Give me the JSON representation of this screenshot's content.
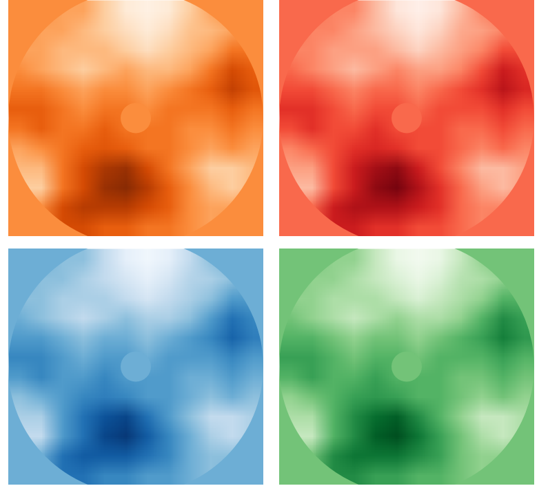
{
  "chart_data": [
    {
      "type": "heatmap",
      "color": "Oranges",
      "color_range": [
        -3,
        3
      ],
      "tick_labels": false,
      "cells": [
        [
          0,
          0,
          -0.5,
          -0.5,
          -1.5,
          -2.5,
          -2.8,
          -2.5,
          -1.5,
          -0.5,
          0,
          0
        ],
        [
          0,
          -0.5,
          -0.5,
          -1,
          -1.5,
          -2,
          -2.5,
          -2,
          -1.2,
          -1,
          -0.5,
          0
        ],
        [
          -0.5,
          -0.5,
          -1,
          -1,
          -1,
          -1.5,
          -2,
          -1.5,
          -1,
          -0.5,
          0.5,
          0.5
        ],
        [
          0,
          -0.5,
          -1,
          -1.5,
          -1,
          -0.5,
          -1,
          -1,
          -0.5,
          0.5,
          1.5,
          1
        ],
        [
          0.5,
          0.5,
          0,
          -0.5,
          0,
          0,
          -0.5,
          0,
          0.5,
          1,
          1.8,
          1.2
        ],
        [
          1,
          1,
          0.5,
          0,
          0.5,
          0.5,
          0,
          0.5,
          0.5,
          0.5,
          1,
          0.5
        ],
        [
          0.5,
          1,
          0.5,
          0.5,
          1,
          0.5,
          0.5,
          0.5,
          0,
          0,
          0.5,
          0
        ],
        [
          -0.5,
          0,
          0.5,
          1,
          1.2,
          1,
          0.5,
          0.5,
          0,
          -0.5,
          0,
          -0.5
        ],
        [
          -1,
          -1,
          0.5,
          1.5,
          2.2,
          2.5,
          1.5,
          0.5,
          -0.5,
          -1.5,
          -1.5,
          -1
        ],
        [
          -1.5,
          -1.5,
          0.5,
          1.5,
          2.5,
          2.8,
          2,
          1,
          0,
          -1,
          -1.5,
          -1
        ],
        [
          -1,
          0,
          1.5,
          2,
          2,
          2,
          1.5,
          1,
          0,
          -0.5,
          -0.5,
          -0.5
        ],
        [
          0,
          0.5,
          1.5,
          1.5,
          1,
          1,
          0.5,
          0.5,
          0,
          -0.5,
          0,
          0
        ]
      ]
    },
    {
      "type": "heatmap",
      "color": "Reds",
      "color_range": [
        -3,
        3
      ],
      "tick_labels": false,
      "cells": [
        [
          0,
          0,
          -0.5,
          -0.5,
          -1.5,
          -2.5,
          -2.8,
          -2.5,
          -1.5,
          -0.5,
          0,
          0
        ],
        [
          0,
          -0.5,
          -0.5,
          -1,
          -1.5,
          -2,
          -2.5,
          -2,
          -1.2,
          -1,
          -0.5,
          0
        ],
        [
          -0.5,
          -0.5,
          -1,
          -1,
          -1,
          -1.5,
          -2,
          -1.5,
          -1,
          -0.5,
          0.5,
          0.5
        ],
        [
          0,
          -0.5,
          -1,
          -1.5,
          -1,
          -0.5,
          -1,
          -1,
          -0.5,
          0.5,
          1.5,
          1
        ],
        [
          0.5,
          0.5,
          0,
          -0.5,
          0,
          0,
          -0.5,
          0,
          0.5,
          1,
          1.8,
          1.2
        ],
        [
          1,
          1,
          0.5,
          0,
          0.5,
          0.5,
          0,
          0.5,
          0.5,
          0.5,
          1,
          0.5
        ],
        [
          0.5,
          1,
          0.5,
          0.5,
          1,
          0.5,
          0.5,
          0.5,
          0,
          0,
          0.5,
          0
        ],
        [
          -0.5,
          0,
          0.5,
          1,
          1.2,
          1,
          0.5,
          0.5,
          0,
          -0.5,
          0,
          -0.5
        ],
        [
          -1,
          -1,
          0.5,
          1.5,
          2.2,
          2.5,
          1.5,
          0.5,
          -0.5,
          -1.5,
          -1.5,
          -1
        ],
        [
          -1.5,
          -1.5,
          0.5,
          1.5,
          2.5,
          2.8,
          2,
          1,
          0,
          -1,
          -1.5,
          -1
        ],
        [
          -1,
          0,
          1.5,
          2,
          2,
          2,
          1.5,
          1,
          0,
          -0.5,
          -0.5,
          -0.5
        ],
        [
          0,
          0.5,
          1.5,
          1.5,
          1,
          1,
          0.5,
          0.5,
          0,
          -0.5,
          0,
          0
        ]
      ]
    },
    {
      "type": "heatmap",
      "color": "Blues",
      "color_range": [
        -3,
        3
      ],
      "tick_labels": false,
      "cells": [
        [
          0,
          0,
          -0.5,
          -0.5,
          -1.5,
          -2.5,
          -2.8,
          -2.5,
          -1.5,
          -0.5,
          0,
          0
        ],
        [
          0,
          -0.5,
          -0.5,
          -1,
          -1.5,
          -2,
          -2.5,
          -2,
          -1.2,
          -1,
          -0.5,
          0
        ],
        [
          -0.5,
          -0.5,
          -1,
          -1,
          -1,
          -1.5,
          -2,
          -1.5,
          -1,
          -0.5,
          0.5,
          0.5
        ],
        [
          0,
          -0.5,
          -1,
          -1.5,
          -1,
          -0.5,
          -1,
          -1,
          -0.5,
          0.5,
          1.5,
          1
        ],
        [
          0.5,
          0.5,
          0,
          -0.5,
          0,
          0,
          -0.5,
          0,
          0.5,
          1,
          1.8,
          1.2
        ],
        [
          1,
          1,
          0.5,
          0,
          0.5,
          0.5,
          0,
          0.5,
          0.5,
          0.5,
          1,
          0.5
        ],
        [
          0.5,
          1,
          0.5,
          0.5,
          1,
          0.5,
          0.5,
          0.5,
          0,
          0,
          0.5,
          0
        ],
        [
          -0.5,
          0,
          0.5,
          1,
          1.2,
          1,
          0.5,
          0.5,
          0,
          -0.5,
          0,
          -0.5
        ],
        [
          -1,
          -1,
          0.5,
          1.5,
          2.2,
          2.5,
          1.5,
          0.5,
          -0.5,
          -1.5,
          -1.5,
          -1
        ],
        [
          -1.5,
          -1.5,
          0.5,
          1.5,
          2.5,
          2.8,
          2,
          1,
          0,
          -1,
          -1.5,
          -1
        ],
        [
          -1,
          0,
          1.5,
          2,
          2,
          2,
          1.5,
          1,
          0,
          -0.5,
          -0.5,
          -0.5
        ],
        [
          0,
          0.5,
          1.5,
          1.5,
          1,
          1,
          0.5,
          0.5,
          0,
          -0.5,
          0,
          0
        ]
      ]
    },
    {
      "type": "heatmap",
      "color": "Greens",
      "color_range": [
        -3,
        3
      ],
      "tick_labels": false,
      "cells": [
        [
          0,
          0,
          -0.5,
          -0.5,
          -1.5,
          -2.5,
          -2.8,
          -2.5,
          -1.5,
          -0.5,
          0,
          0
        ],
        [
          0,
          -0.5,
          -0.5,
          -1,
          -1.5,
          -2,
          -2.5,
          -2,
          -1.2,
          -1,
          -0.5,
          0
        ],
        [
          -0.5,
          -0.5,
          -1,
          -1,
          -1,
          -1.5,
          -2,
          -1.5,
          -1,
          -0.5,
          0.5,
          0.5
        ],
        [
          0,
          -0.5,
          -1,
          -1.5,
          -1,
          -0.5,
          -1,
          -1,
          -0.5,
          0.5,
          1.5,
          1
        ],
        [
          0.5,
          0.5,
          0,
          -0.5,
          0,
          0,
          -0.5,
          0,
          0.5,
          1,
          1.8,
          1.2
        ],
        [
          1,
          1,
          0.5,
          0,
          0.5,
          0.5,
          0,
          0.5,
          0.5,
          0.5,
          1,
          0.5
        ],
        [
          0.5,
          1,
          0.5,
          0.5,
          1,
          0.5,
          0.5,
          0.5,
          0,
          0,
          0.5,
          0
        ],
        [
          -0.5,
          0,
          0.5,
          1,
          1.2,
          1,
          0.5,
          0.5,
          0,
          -0.5,
          0,
          -0.5
        ],
        [
          -1,
          -1,
          0.5,
          1.5,
          2.2,
          2.5,
          1.5,
          0.5,
          -0.5,
          -1.5,
          -1.5,
          -1
        ],
        [
          -1.5,
          -1.5,
          0.5,
          1.5,
          2.5,
          2.8,
          2,
          1,
          0,
          -1,
          -1.5,
          -1
        ],
        [
          -1,
          0,
          1.5,
          2,
          2,
          2,
          1.5,
          1,
          0,
          -0.5,
          -0.5,
          -0.5
        ],
        [
          0,
          0.5,
          1.5,
          1.5,
          1,
          1,
          0.5,
          0.5,
          0,
          -0.5,
          0,
          0
        ]
      ]
    }
  ]
}
